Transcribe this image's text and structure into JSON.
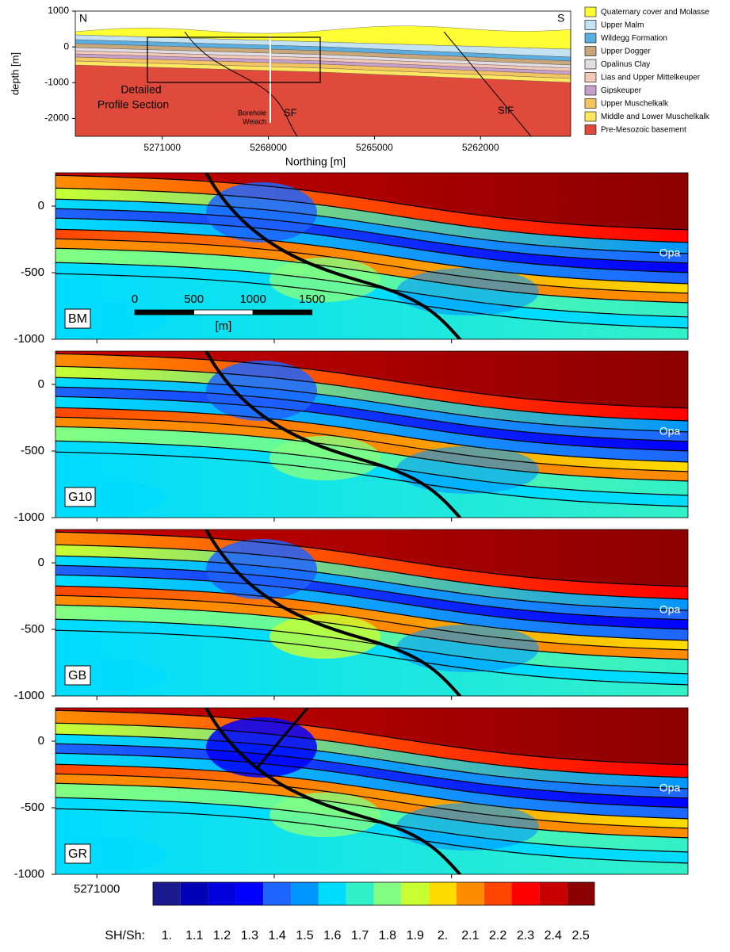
{
  "profile": {
    "ylabel": "depth [m]",
    "xlabel": "Northing [m]",
    "ylim": [
      -2500,
      1000
    ],
    "yticks": [
      1000,
      0,
      -1000,
      -2000
    ],
    "xlim": [
      5273460,
      5259450
    ],
    "xticks": [
      5271000,
      5268000,
      5265000,
      5262000
    ],
    "north": "N",
    "south": "S",
    "box_label": [
      "Detailed",
      "Profile Section"
    ],
    "borehole_label": [
      "Borehole",
      "Weiach"
    ],
    "faults": [
      "SF",
      "SIF"
    ],
    "legend": [
      {
        "name": "Quaternary cover and Molasse",
        "color": "#ffff33"
      },
      {
        "name": "Upper Malm",
        "color": "#c4e2f2"
      },
      {
        "name": "Wildegg Formation",
        "color": "#5aaee0"
      },
      {
        "name": "Upper Dogger",
        "color": "#c8a87a"
      },
      {
        "name": "Opalinus Clay",
        "color": "#e2dde2"
      },
      {
        "name": "Lias and Upper Mittelkeuper",
        "color": "#f4c8b8"
      },
      {
        "name": "Gipskeuper",
        "color": "#c8a0cc"
      },
      {
        "name": "Upper Muschelkalk",
        "color": "#f4c460"
      },
      {
        "name": "Middle and Lower Muschelkalk",
        "color": "#ffe860"
      },
      {
        "name": "Pre-Mesozoic basement",
        "color": "#e04a3a"
      }
    ]
  },
  "panels": {
    "ylim": [
      -1000,
      250
    ],
    "yticks": [
      0,
      -500,
      -1000
    ],
    "xlim": [
      5271350,
      5266000
    ],
    "xticks": [
      5271000,
      5269500,
      5268000
    ],
    "layer_label": "Opa",
    "items": [
      {
        "name": "BM"
      },
      {
        "name": "G10"
      },
      {
        "name": "GB"
      },
      {
        "name": "GR"
      }
    ],
    "scale_bar": {
      "ticks": [
        0,
        500,
        1000,
        1500
      ],
      "unit": "[m]"
    }
  },
  "colorbar": {
    "title": "SH/Sh:",
    "levels": [
      {
        "label": "1.",
        "color": "#1a1a8c"
      },
      {
        "label": "1.1",
        "color": "#0000b4"
      },
      {
        "label": "1.2",
        "color": "#0000dc"
      },
      {
        "label": "1.3",
        "color": "#0000ff"
      },
      {
        "label": "1.4",
        "color": "#1e64ff"
      },
      {
        "label": "1.5",
        "color": "#0096ff"
      },
      {
        "label": "1.6",
        "color": "#00dcff"
      },
      {
        "label": "1.7",
        "color": "#32f0c8"
      },
      {
        "label": "1.8",
        "color": "#82ff82"
      },
      {
        "label": "1.9",
        "color": "#c8ff32"
      },
      {
        "label": "2.",
        "color": "#ffdc00"
      },
      {
        "label": "2.1",
        "color": "#ff8c00"
      },
      {
        "label": "2.2",
        "color": "#ff4600"
      },
      {
        "label": "2.3",
        "color": "#ff0000"
      },
      {
        "label": "2.4",
        "color": "#c80000"
      },
      {
        "label": "2.5",
        "color": "#8c0000"
      }
    ]
  }
}
